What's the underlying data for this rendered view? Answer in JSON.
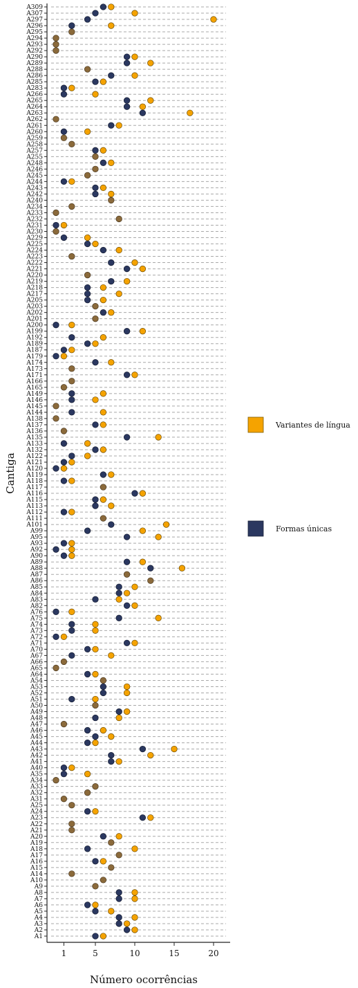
{
  "chart_data": {
    "type": "scatter",
    "xlabel": "Número ocorrências",
    "ylabel": "Cantiga",
    "x_ticks": [
      1,
      5,
      10,
      15,
      20
    ],
    "xlim": [
      -0.2,
      22
    ],
    "grid": "horizontal dashed",
    "legend_placement": "right",
    "colors": {
      "variantes": "#F5A300",
      "formas": "#2B3860",
      "overlap": "#8B6A3B"
    },
    "series": [
      {
        "name": "Variantes de língua",
        "color": "#F5A300"
      },
      {
        "name": "Formas únicas",
        "color": "#2B3860"
      }
    ],
    "categories": [
      "A1",
      "A2",
      "A3",
      "A4",
      "A5",
      "A6",
      "A7",
      "A8",
      "A9",
      "A10",
      "A14",
      "A15",
      "A16",
      "A17",
      "A18",
      "A19",
      "A20",
      "A21",
      "A22",
      "A23",
      "A24",
      "A25",
      "A31",
      "A32",
      "A33",
      "A34",
      "A35",
      "A40",
      "A41",
      "A42",
      "A43",
      "A44",
      "A45",
      "A46",
      "A47",
      "A48",
      "A49",
      "A50",
      "A51",
      "A52",
      "A53",
      "A54",
      "A64",
      "A65",
      "A66",
      "A67",
      "A70",
      "A71",
      "A72",
      "A73",
      "A74",
      "A75",
      "A76",
      "A82",
      "A83",
      "A84",
      "A85",
      "A86",
      "A87",
      "A88",
      "A89",
      "A90",
      "A92",
      "A93",
      "A95",
      "A99",
      "A101",
      "A111",
      "A112",
      "A113",
      "A115",
      "A116",
      "A117",
      "A118",
      "A119",
      "A120",
      "A121",
      "A122",
      "A132",
      "A133",
      "A135",
      "A136",
      "A137",
      "A138",
      "A144",
      "A145",
      "A146",
      "A149",
      "A165",
      "A166",
      "A171",
      "A173",
      "A174",
      "A179",
      "A187",
      "A189",
      "A192",
      "A199",
      "A200",
      "A201",
      "A202",
      "A203",
      "A205",
      "A217",
      "A218",
      "A219",
      "A220",
      "A221",
      "A222",
      "A223",
      "A224",
      "A225",
      "A229",
      "A230",
      "A231",
      "A232",
      "A233",
      "A234",
      "A240",
      "A242",
      "A243",
      "A244",
      "A245",
      "A246",
      "A248",
      "A255",
      "A257",
      "A258",
      "A259",
      "A260",
      "A261",
      "A262",
      "A263",
      "A264",
      "A265",
      "A266",
      "A283",
      "A285",
      "A286",
      "A288",
      "A289",
      "A290",
      "A292",
      "A293",
      "A294",
      "A295",
      "A296",
      "A297",
      "A307",
      "A309"
    ],
    "points": [
      [
        5,
        6
      ],
      [
        9,
        10
      ],
      [
        8,
        9
      ],
      [
        8,
        10
      ],
      [
        5,
        7
      ],
      [
        4,
        5
      ],
      [
        8,
        10
      ],
      [
        8,
        10
      ],
      [
        5,
        5
      ],
      [
        6,
        6
      ],
      [
        2,
        2
      ],
      [
        7,
        7
      ],
      [
        5,
        6
      ],
      [
        8,
        8
      ],
      [
        4,
        10
      ],
      [
        7,
        7
      ],
      [
        6,
        8
      ],
      [
        2,
        2
      ],
      [
        2,
        2
      ],
      [
        11,
        12
      ],
      [
        4,
        5
      ],
      [
        2,
        2
      ],
      [
        1,
        1
      ],
      [
        4,
        4
      ],
      [
        5,
        5
      ],
      [
        0,
        0
      ],
      [
        1,
        4
      ],
      [
        1,
        2
      ],
      [
        7,
        8
      ],
      [
        7,
        12
      ],
      [
        11,
        15
      ],
      [
        4,
        5
      ],
      [
        5,
        7
      ],
      [
        4,
        6
      ],
      [
        1,
        1
      ],
      [
        5,
        8
      ],
      [
        8,
        9
      ],
      [
        5,
        5
      ],
      [
        2,
        5
      ],
      [
        6,
        9
      ],
      [
        6,
        9
      ],
      [
        6,
        6
      ],
      [
        4,
        5
      ],
      [
        0,
        0
      ],
      [
        1,
        1
      ],
      [
        2,
        7
      ],
      [
        4,
        5
      ],
      [
        9,
        10
      ],
      [
        0,
        1
      ],
      [
        2,
        5
      ],
      [
        2,
        5
      ],
      [
        8,
        13
      ],
      [
        0,
        2
      ],
      [
        9,
        10
      ],
      [
        5,
        8
      ],
      [
        8,
        9
      ],
      [
        8,
        10
      ],
      [
        12,
        12
      ],
      [
        9,
        9
      ],
      [
        12,
        16
      ],
      [
        9,
        11
      ],
      [
        1,
        2
      ],
      [
        0,
        2
      ],
      [
        1,
        2
      ],
      [
        9,
        13
      ],
      [
        4,
        11
      ],
      [
        7,
        14
      ],
      [
        6,
        6
      ],
      [
        1,
        2
      ],
      [
        5,
        7
      ],
      [
        5,
        6
      ],
      [
        10,
        11
      ],
      [
        6,
        6
      ],
      [
        1,
        2
      ],
      [
        6,
        7
      ],
      [
        0,
        1
      ],
      [
        1,
        2
      ],
      [
        2,
        4
      ],
      [
        5,
        6
      ],
      [
        1,
        4
      ],
      [
        9,
        13
      ],
      [
        1,
        1
      ],
      [
        5,
        6
      ],
      [
        0,
        0
      ],
      [
        2,
        6
      ],
      [
        0,
        0
      ],
      [
        2,
        5
      ],
      [
        2,
        6
      ],
      [
        1,
        1
      ],
      [
        2,
        2
      ],
      [
        9,
        10
      ],
      [
        2,
        2
      ],
      [
        5,
        7
      ],
      [
        0,
        1
      ],
      [
        1,
        2
      ],
      [
        4,
        5
      ],
      [
        2,
        6
      ],
      [
        9,
        11
      ],
      [
        0,
        2
      ],
      [
        5,
        5
      ],
      [
        6,
        7
      ],
      [
        5,
        5
      ],
      [
        4,
        6
      ],
      [
        4,
        8
      ],
      [
        4,
        6
      ],
      [
        7,
        9
      ],
      [
        4,
        4
      ],
      [
        9,
        11
      ],
      [
        7,
        10
      ],
      [
        2,
        2
      ],
      [
        6,
        8
      ],
      [
        4,
        5
      ],
      [
        1,
        4
      ],
      [
        0,
        0
      ],
      [
        0,
        1
      ],
      [
        8,
        8
      ],
      [
        0,
        0
      ],
      [
        2,
        2
      ],
      [
        7,
        7
      ],
      [
        5,
        7
      ],
      [
        5,
        6
      ],
      [
        1,
        2
      ],
      [
        4,
        4
      ],
      [
        5,
        5
      ],
      [
        6,
        7
      ],
      [
        5,
        5
      ],
      [
        5,
        6
      ],
      [
        2,
        2
      ],
      [
        1,
        1
      ],
      [
        1,
        4
      ],
      [
        7,
        8
      ],
      [
        0,
        0
      ],
      [
        11,
        17
      ],
      [
        9,
        11
      ],
      [
        9,
        12
      ],
      [
        1,
        5
      ],
      [
        1,
        2
      ],
      [
        5,
        6
      ],
      [
        7,
        10
      ],
      [
        4,
        4
      ],
      [
        9,
        12
      ],
      [
        9,
        10
      ],
      [
        0,
        0
      ],
      [
        0,
        0
      ],
      [
        0,
        0
      ],
      [
        2,
        2
      ],
      [
        2,
        7
      ],
      [
        4,
        20
      ],
      [
        5,
        10
      ],
      [
        6,
        7
      ]
    ]
  },
  "legend": [
    {
      "label": "Variantes de língua",
      "color": "#F5A300"
    },
    {
      "label": "Formas únicas",
      "color": "#2B3860"
    }
  ]
}
